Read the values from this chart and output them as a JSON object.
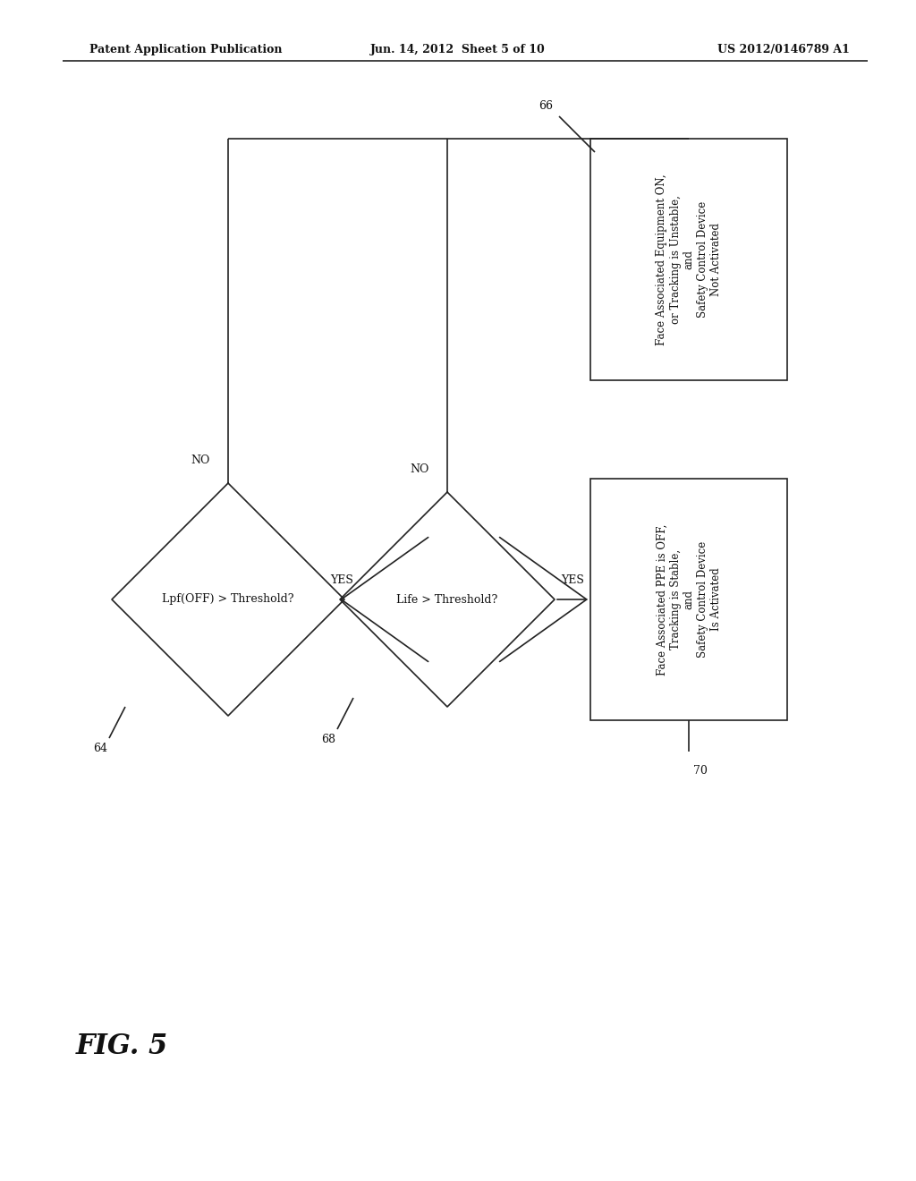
{
  "title_left": "Patent Application Publication",
  "title_center": "Jun. 14, 2012  Sheet 5 of 10",
  "title_right": "US 2012/0146789 A1",
  "fig_label": "FIG. 5",
  "background_color": "#ffffff",
  "line_color": "#222222",
  "text_color": "#111111",
  "d1_label": "Lpf(OFF) > Threshold?",
  "d2_label": "Life > Threshold?",
  "box1_lines": [
    "Face Associated Equipment ON,",
    "or Tracking is Unstable,",
    "and",
    "Safety Control Device",
    "Not Activated"
  ],
  "box2_lines": [
    "Face Associated PPE is OFF,",
    "Tracking is Stable,",
    "and",
    "Safety Control Device",
    "Is Activated"
  ],
  "id64": "64",
  "id66": "66",
  "id68": "68",
  "id70": "70"
}
